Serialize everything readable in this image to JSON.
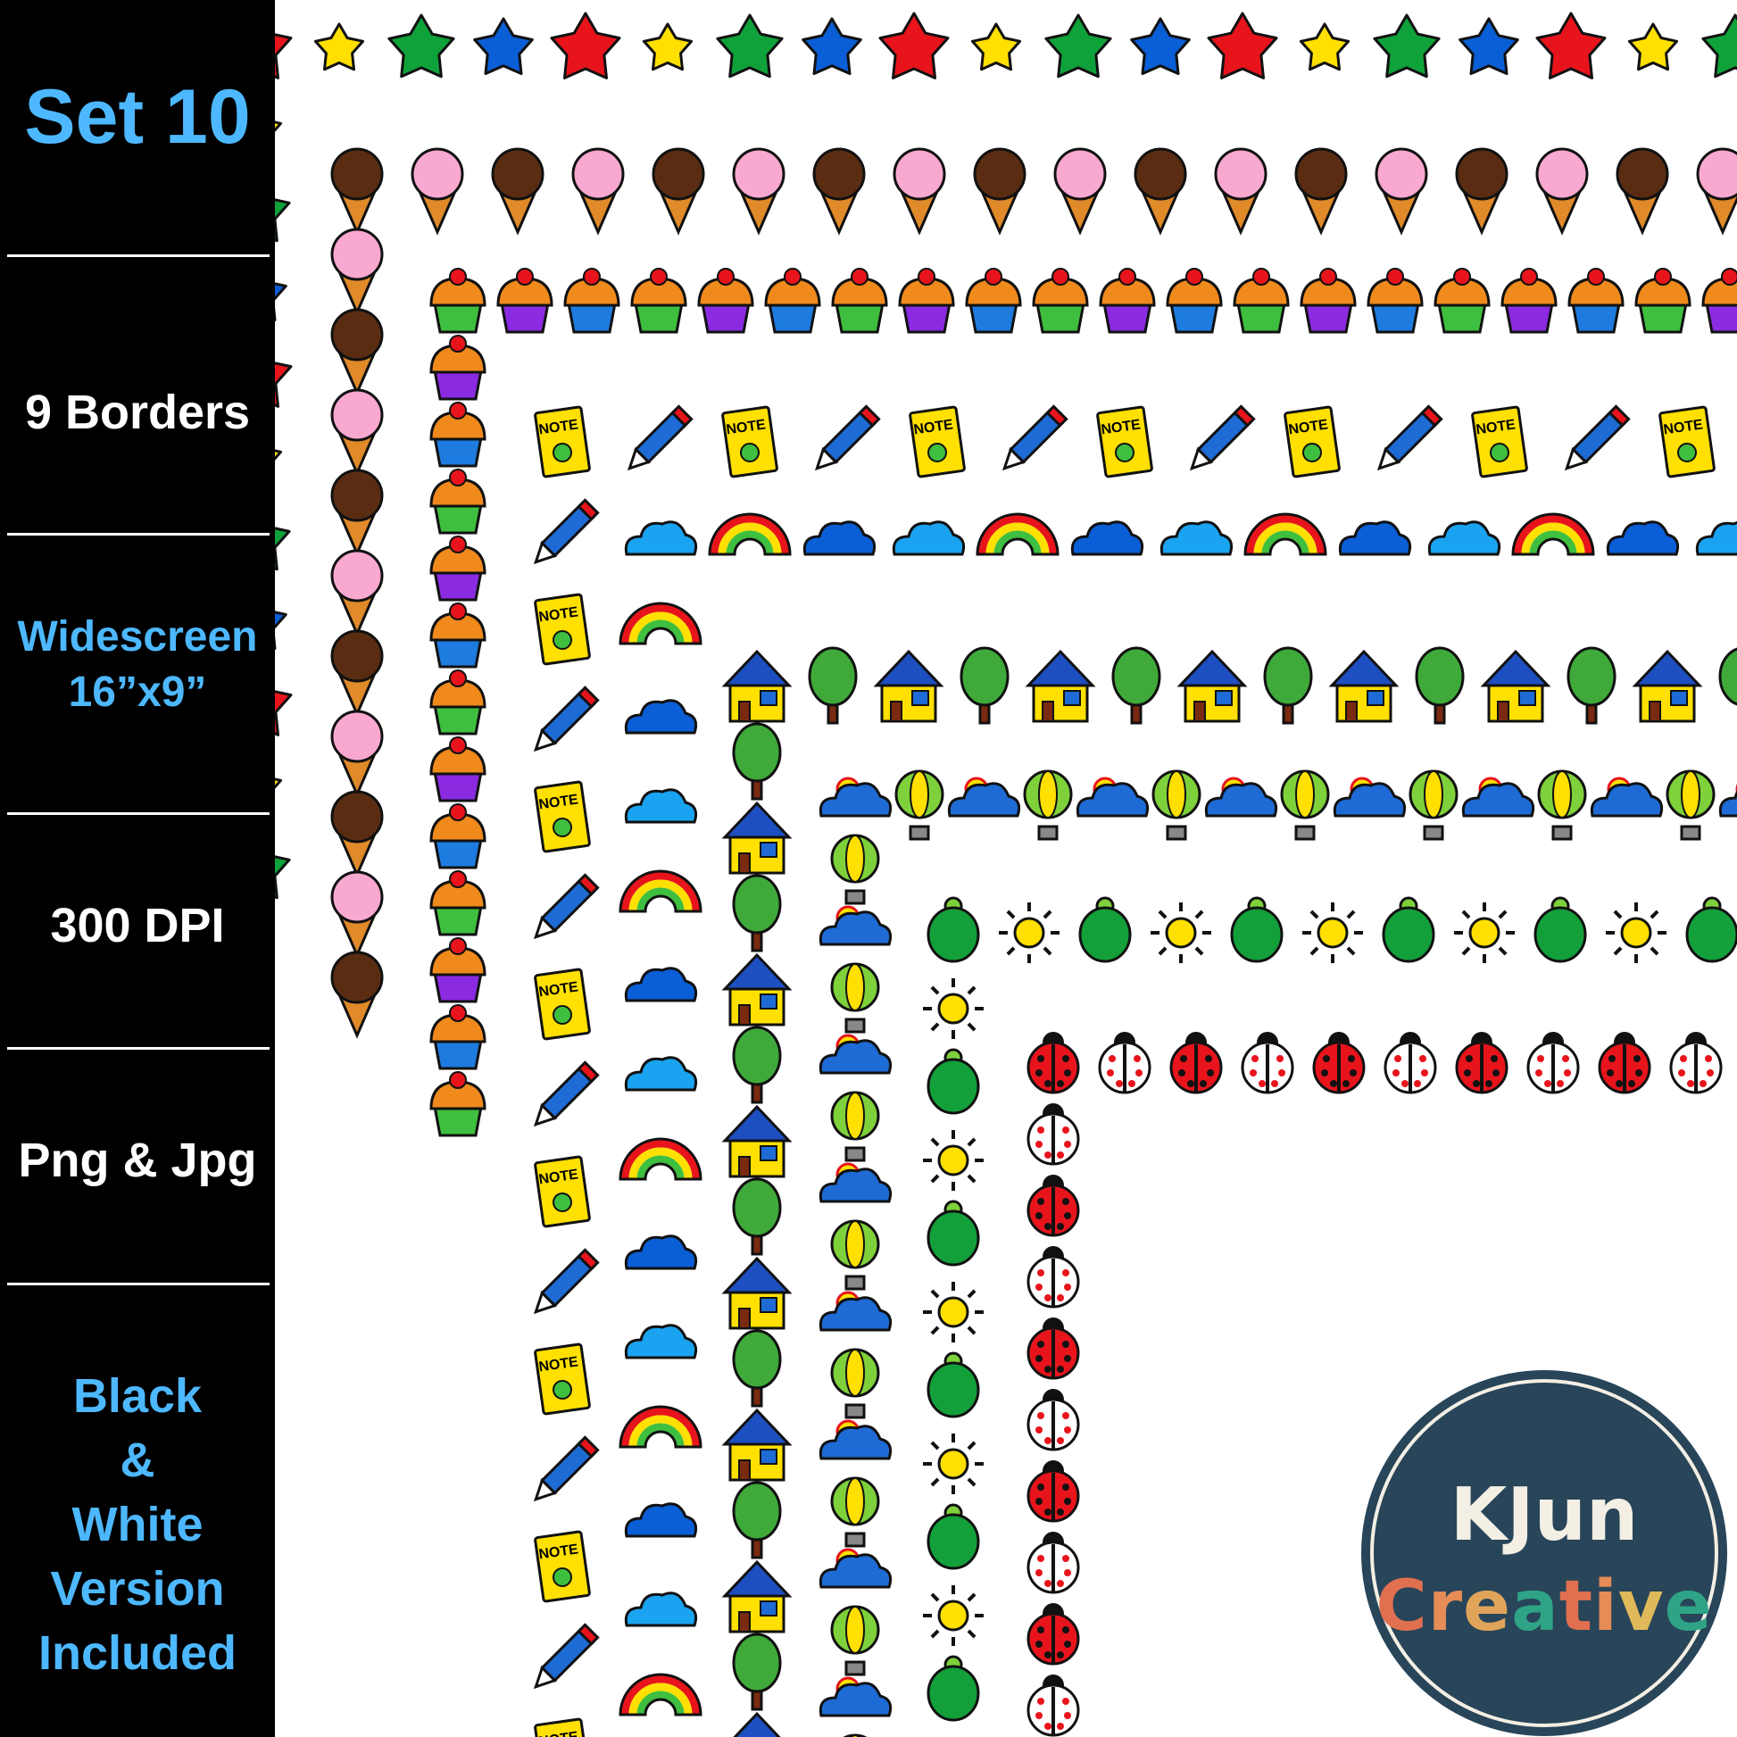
{
  "sidebar": {
    "title": "Set 10",
    "items": [
      {
        "label": "9 Borders",
        "color": "white"
      },
      {
        "label": "Widescreen",
        "label2": "16”x9”",
        "color": "blue"
      },
      {
        "label": "300 DPI",
        "color": "white"
      },
      {
        "label": "Png & Jpg",
        "color": "white"
      },
      {
        "lines": [
          "Black",
          "&",
          "White",
          "Version",
          "Included"
        ],
        "color": "blue"
      }
    ],
    "accent": "#4db8ff"
  },
  "borders": [
    {
      "theme": "stars",
      "icons": [
        "star-red-icon",
        "star-yellow-icon",
        "star-green-icon",
        "star-blue-icon"
      ]
    },
    {
      "theme": "ice-cream",
      "icons": [
        "ice-cream-chocolate-icon",
        "ice-cream-strawberry-icon"
      ]
    },
    {
      "theme": "cupcakes",
      "icons": [
        "cupcake-green-icon",
        "cupcake-purple-icon",
        "cupcake-blue-icon"
      ]
    },
    {
      "theme": "school",
      "icons": [
        "notebook-icon",
        "pencil-icon"
      ]
    },
    {
      "theme": "weather",
      "icons": [
        "cloud-light-icon",
        "rainbow-icon",
        "cloud-dark-icon"
      ]
    },
    {
      "theme": "neighborhood",
      "icons": [
        "house-icon",
        "tree-icon"
      ]
    },
    {
      "theme": "sky",
      "icons": [
        "sun-cloud-icon",
        "hot-air-balloon-icon"
      ]
    },
    {
      "theme": "turtles",
      "icons": [
        "turtle-icon",
        "sun-icon"
      ]
    },
    {
      "theme": "ladybugs",
      "icons": [
        "ladybug-red-icon",
        "ladybug-white-icon"
      ]
    }
  ],
  "notebook_label": "NOTE",
  "logo": {
    "line1": "KJun",
    "line2": "Creative",
    "background": "#284559",
    "letter_colors": [
      "#e0704f",
      "#e58c57",
      "#e0a55a",
      "#2fa386",
      "#e0704f",
      "#e58c57",
      "#e0b95a",
      "#2fa386"
    ]
  }
}
